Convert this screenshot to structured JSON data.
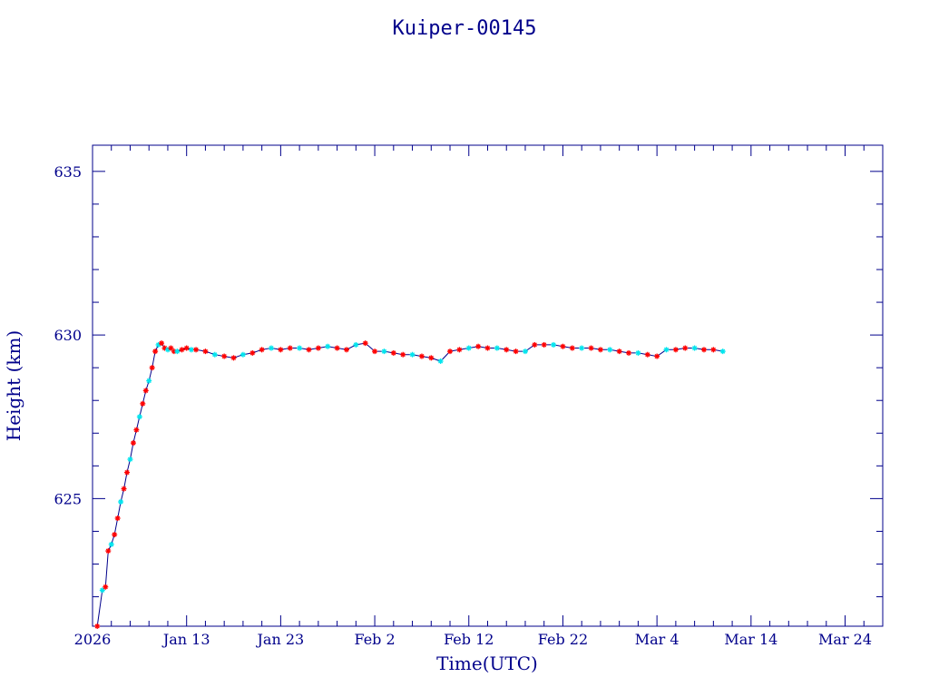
{
  "chart_data": {
    "type": "line",
    "title": "Kuiper-00145",
    "xlabel": "Time(UTC)",
    "ylabel": "Height (km)",
    "xlim": [
      "2026-01-03T00:00",
      "2026-03-28T00:00"
    ],
    "ylim": [
      621.1,
      635.8
    ],
    "x_tick_labels": [
      "2026",
      "Jan 13",
      "Jan 23",
      "Feb  2",
      "Feb 12",
      "Feb 22",
      "Mar  4",
      "Mar 14",
      "Mar 24"
    ],
    "x_tick_dates": [
      "2026-01-03",
      "2026-01-13",
      "2026-01-23",
      "2026-02-02",
      "2026-02-12",
      "2026-02-22",
      "2026-03-04",
      "2026-03-14",
      "2026-03-24"
    ],
    "y_tick_values": [
      625,
      630,
      635
    ],
    "y_tick_labels": [
      "625",
      "630",
      "635"
    ],
    "grid": false,
    "colors": {
      "axis": "#00008b",
      "line": "#00008b",
      "marker_red": "#ff0000",
      "marker_cyan": "#00e5ee"
    },
    "series": [
      {
        "marker": "asterisk-red-cyan",
        "x": [
          "2026-01-03T12:00",
          "2026-01-04T01:00",
          "2026-01-04T09:00",
          "2026-01-04T16:00",
          "2026-01-05T00:00",
          "2026-01-05T08:00",
          "2026-01-05T16:00",
          "2026-01-06T00:00",
          "2026-01-06T08:00",
          "2026-01-06T16:00",
          "2026-01-07T00:00",
          "2026-01-07T08:00",
          "2026-01-07T16:00",
          "2026-01-08T00:00",
          "2026-01-08T08:00",
          "2026-01-08T16:00",
          "2026-01-09T00:00",
          "2026-01-09T08:00",
          "2026-01-09T16:00",
          "2026-01-10T00:00",
          "2026-01-10T08:00",
          "2026-01-10T16:00",
          "2026-01-11T00:00",
          "2026-01-11T08:00",
          "2026-01-11T16:00",
          "2026-01-12T00:00",
          "2026-01-12T12:00",
          "2026-01-13T00:00",
          "2026-01-13T12:00",
          "2026-01-14T00:00",
          "2026-01-15T00:00",
          "2026-01-16T00:00",
          "2026-01-17T00:00",
          "2026-01-18T00:00",
          "2026-01-19T00:00",
          "2026-01-20T00:00",
          "2026-01-21T00:00",
          "2026-01-22T00:00",
          "2026-01-23T00:00",
          "2026-01-24T00:00",
          "2026-01-25T00:00",
          "2026-01-26T00:00",
          "2026-01-27T00:00",
          "2026-01-28T00:00",
          "2026-01-29T00:00",
          "2026-01-30T00:00",
          "2026-01-31T00:00",
          "2026-02-01T00:00",
          "2026-02-02T00:00",
          "2026-02-03T00:00",
          "2026-02-04T00:00",
          "2026-02-05T00:00",
          "2026-02-06T00:00",
          "2026-02-07T00:00",
          "2026-02-08T00:00",
          "2026-02-09T00:00",
          "2026-02-10T00:00",
          "2026-02-11T00:00",
          "2026-02-12T00:00",
          "2026-02-13T00:00",
          "2026-02-14T00:00",
          "2026-02-15T00:00",
          "2026-02-16T00:00",
          "2026-02-17T00:00",
          "2026-02-18T00:00",
          "2026-02-19T00:00",
          "2026-02-20T00:00",
          "2026-02-21T00:00",
          "2026-02-22T00:00",
          "2026-02-23T00:00",
          "2026-02-24T00:00",
          "2026-02-25T00:00",
          "2026-02-26T00:00",
          "2026-02-27T00:00",
          "2026-02-28T00:00",
          "2026-03-01T00:00",
          "2026-03-02T00:00",
          "2026-03-03T00:00",
          "2026-03-04T00:00",
          "2026-03-05T00:00",
          "2026-03-06T00:00",
          "2026-03-07T00:00",
          "2026-03-08T00:00",
          "2026-03-09T00:00",
          "2026-03-10T00:00",
          "2026-03-11T00:00"
        ],
        "y": [
          621.1,
          622.2,
          622.3,
          623.4,
          623.6,
          623.9,
          624.4,
          624.9,
          625.3,
          625.8,
          626.2,
          626.7,
          627.1,
          627.5,
          627.9,
          628.3,
          628.6,
          629.0,
          629.5,
          629.7,
          629.75,
          629.6,
          629.55,
          629.6,
          629.5,
          629.5,
          629.55,
          629.6,
          629.55,
          629.55,
          629.5,
          629.4,
          629.35,
          629.3,
          629.4,
          629.45,
          629.55,
          629.6,
          629.55,
          629.6,
          629.6,
          629.55,
          629.6,
          629.65,
          629.6,
          629.55,
          629.7,
          629.75,
          629.5,
          629.5,
          629.45,
          629.4,
          629.4,
          629.35,
          629.3,
          629.2,
          629.5,
          629.55,
          629.6,
          629.65,
          629.6,
          629.6,
          629.55,
          629.5,
          629.5,
          629.7,
          629.7,
          629.7,
          629.65,
          629.6,
          629.6,
          629.6,
          629.55,
          629.55,
          629.5,
          629.45,
          629.45,
          629.4,
          629.35,
          629.55,
          629.55,
          629.6,
          629.6,
          629.55,
          629.55,
          629.5
        ]
      }
    ]
  }
}
